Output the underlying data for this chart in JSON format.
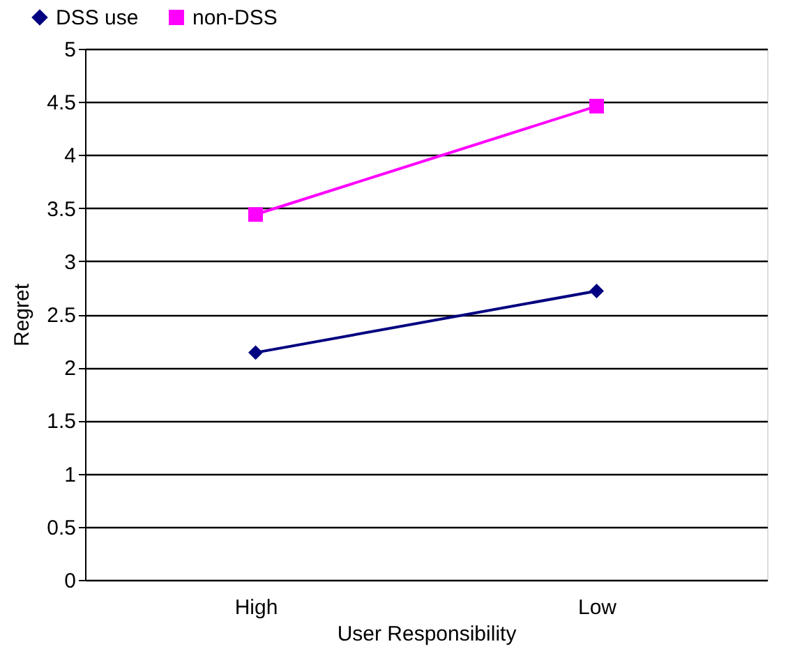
{
  "chart_data": {
    "type": "line",
    "xlabel": "User Responsibility",
    "ylabel": "Regret",
    "categories": [
      "High",
      "Low"
    ],
    "series": [
      {
        "name": "DSS use",
        "color": "#000080",
        "values": [
          2.14,
          2.72
        ],
        "marker": "diamond"
      },
      {
        "name": "non-DSS",
        "color": "#ff00ff",
        "values": [
          3.44,
          4.46
        ],
        "marker": "square"
      }
    ],
    "ylim": [
      0,
      5
    ],
    "yticks": [
      0,
      0.5,
      1,
      1.5,
      2,
      2.5,
      3,
      3.5,
      4,
      4.5,
      5
    ],
    "grid": "y",
    "legend": "top left",
    "line_style": "solid"
  }
}
